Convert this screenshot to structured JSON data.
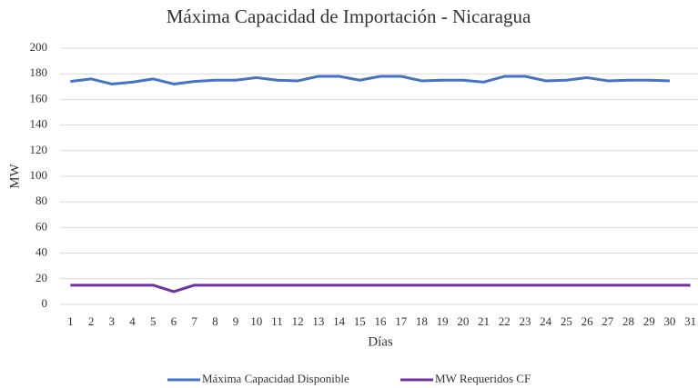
{
  "chart_data": {
    "type": "line",
    "title": "Máxima Capacidad de Importación - Nicaragua",
    "x_label": "Días",
    "y_label": "MW",
    "categories": [
      "1",
      "2",
      "3",
      "4",
      "5",
      "6",
      "7",
      "8",
      "9",
      "10",
      "11",
      "12",
      "13",
      "14",
      "15",
      "16",
      "17",
      "18",
      "19",
      "20",
      "21",
      "22",
      "23",
      "24",
      "25",
      "26",
      "27",
      "28",
      "29",
      "30",
      "31"
    ],
    "series": [
      {
        "name": "Máxima Capacidad Disponible",
        "color": "#4472c4",
        "values": [
          174,
          176,
          172,
          173.5,
          176,
          172,
          174,
          175,
          175,
          177,
          175,
          174.5,
          178,
          178,
          175,
          178,
          178,
          174.5,
          175,
          175,
          173.5,
          178,
          178,
          174.5,
          175,
          177,
          174.5,
          175,
          175,
          174.5,
          null
        ]
      },
      {
        "name": "MW Requeridos CF",
        "color": "#7030a0",
        "values": [
          15,
          15,
          15,
          15,
          15,
          10,
          15,
          15,
          15,
          15,
          15,
          15,
          15,
          15,
          15,
          15,
          15,
          15,
          15,
          15,
          15,
          15,
          15,
          15,
          15,
          15,
          15,
          15,
          15,
          15,
          15
        ]
      }
    ],
    "ylim": [
      0,
      200
    ],
    "yticks": [
      0,
      20,
      40,
      60,
      80,
      100,
      120,
      140,
      160,
      180,
      200
    ],
    "grid": true,
    "legend": "bottom"
  }
}
